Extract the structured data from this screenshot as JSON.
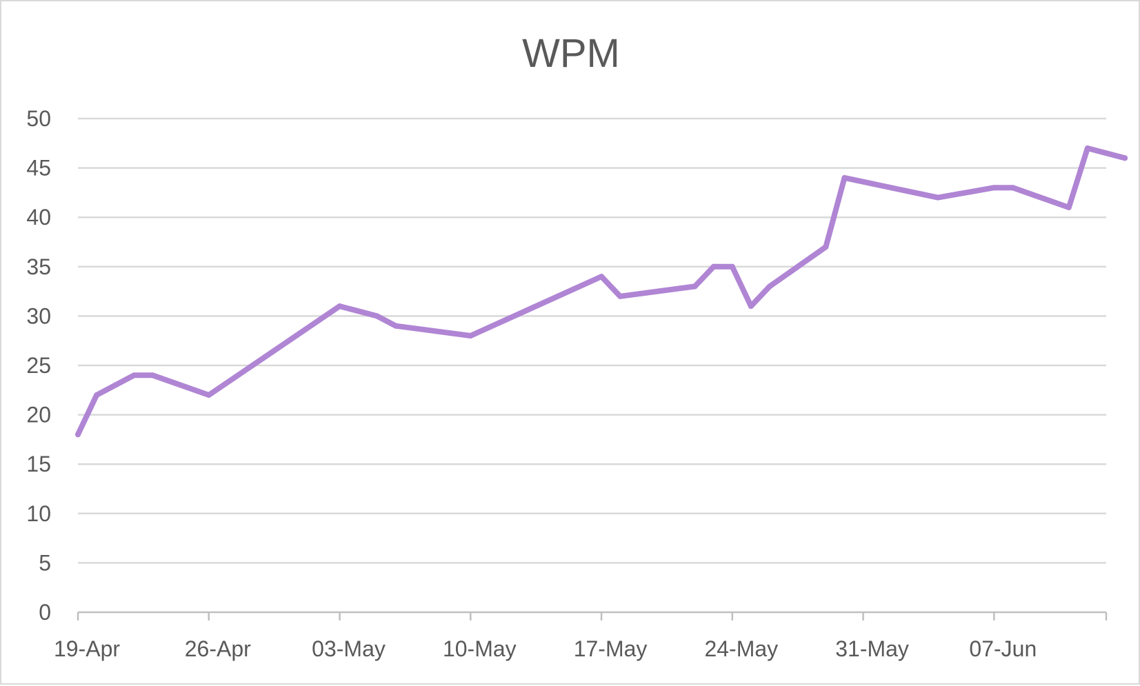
{
  "chart_data": {
    "type": "line",
    "title": "WPM",
    "xlabel": "",
    "ylabel": "",
    "ylim": [
      0,
      50
    ],
    "yticks": [
      0,
      5,
      10,
      15,
      20,
      25,
      30,
      35,
      40,
      45,
      50
    ],
    "xlim": [
      "19-Apr",
      "13-Jun"
    ],
    "xtick_labels": [
      "19-Apr",
      "26-Apr",
      "03-May",
      "10-May",
      "17-May",
      "24-May",
      "31-May",
      "07-Jun"
    ],
    "grid": "horizontal",
    "legend": "none",
    "colors": {
      "line": "#b085d4",
      "grid": "#d9d9d9",
      "axis": "#bfbfbf",
      "text": "#595959"
    },
    "series": [
      {
        "x": [
          "19-Apr",
          "20-Apr",
          "22-Apr",
          "23-Apr",
          "26-Apr",
          "03-May",
          "05-May",
          "06-May",
          "10-May",
          "17-May",
          "18-May",
          "22-May",
          "23-May",
          "24-May",
          "25-May",
          "26-May",
          "29-May",
          "30-May",
          "04-Jun",
          "07-Jun",
          "08-Jun",
          "11-Jun",
          "12-Jun",
          "14-Jun"
        ],
        "values": [
          18,
          22,
          24,
          24,
          22,
          31,
          30,
          29,
          28,
          34,
          32,
          33,
          35,
          35,
          31,
          33,
          37,
          44,
          42,
          43,
          43,
          41,
          47,
          46
        ]
      }
    ]
  }
}
